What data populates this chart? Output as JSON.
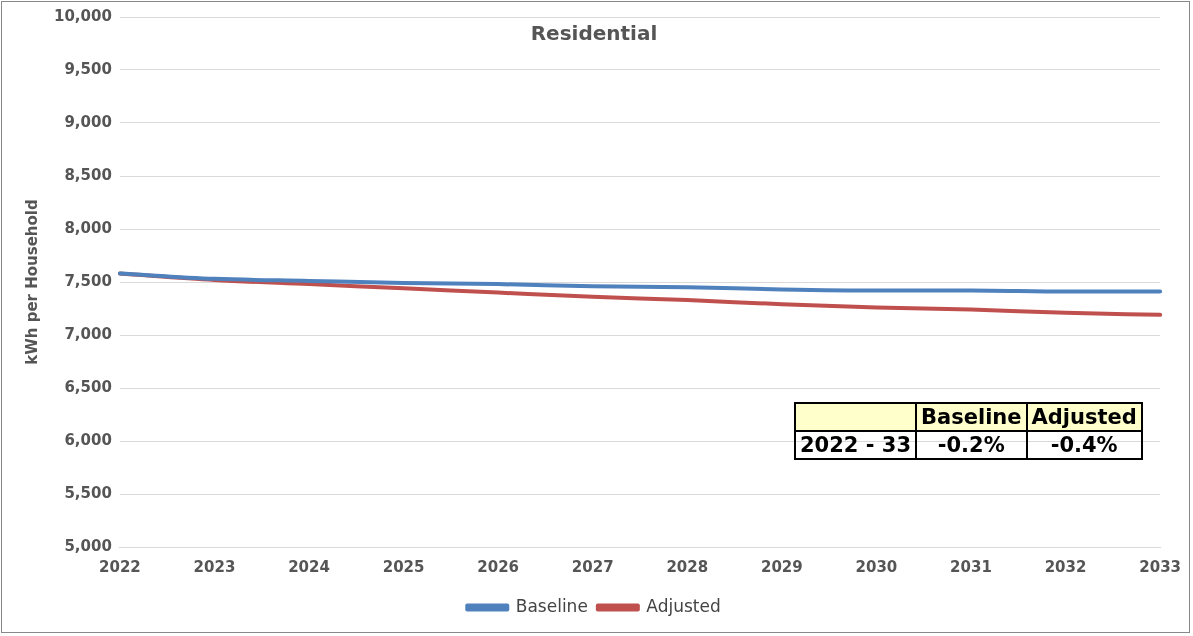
{
  "chart_data": {
    "type": "line",
    "title": "Residential",
    "ylabel": "kWh per Household",
    "categories": [
      "2022",
      "2023",
      "2024",
      "2025",
      "2026",
      "2027",
      "2028",
      "2029",
      "2030",
      "2031",
      "2032",
      "2033"
    ],
    "series": [
      {
        "name": "Baseline",
        "color": "#4f81bd",
        "values": [
          7580,
          7530,
          7510,
          7490,
          7480,
          7460,
          7450,
          7430,
          7420,
          7420,
          7410,
          7410
        ]
      },
      {
        "name": "Adjusted",
        "color": "#c0504d",
        "values": [
          7580,
          7520,
          7480,
          7440,
          7400,
          7360,
          7330,
          7290,
          7260,
          7240,
          7210,
          7190
        ]
      }
    ],
    "ylim": [
      5000,
      10000
    ],
    "yticks": [
      {
        "value": 5000,
        "label": "5,000"
      },
      {
        "value": 5500,
        "label": "5,500"
      },
      {
        "value": 6000,
        "label": "6,000"
      },
      {
        "value": 6500,
        "label": "6,500"
      },
      {
        "value": 7000,
        "label": "7,000"
      },
      {
        "value": 7500,
        "label": "7,500"
      },
      {
        "value": 8000,
        "label": "8,000"
      },
      {
        "value": 8500,
        "label": "8,500"
      },
      {
        "value": 9000,
        "label": "9,000"
      },
      {
        "value": 9500,
        "label": "9,500"
      },
      {
        "value": 10000,
        "label": "10,000"
      }
    ],
    "grid": "y",
    "legend": "bottom",
    "marker": "none",
    "line_style": "solid",
    "annotations": [
      "Baseline",
      "Adjusted",
      "2022 - 33",
      "-0.2%",
      "-0.4%"
    ]
  }
}
